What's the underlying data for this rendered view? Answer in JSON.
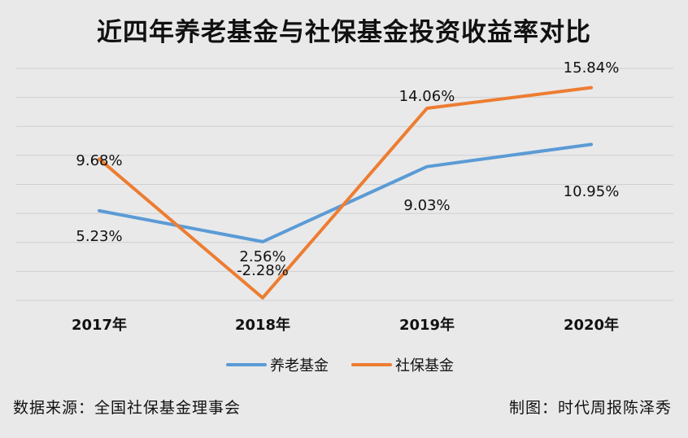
{
  "title": "近四年养老基金与社保基金投资收益率对比",
  "chart_data": {
    "type": "line",
    "categories": [
      "2017年",
      "2018年",
      "2019年",
      "2020年"
    ],
    "series": [
      {
        "name": "养老基金",
        "values": [
          5.23,
          2.56,
          9.03,
          10.95
        ],
        "labels": [
          "5.23%",
          "2.56%",
          "9.03%",
          "10.95%"
        ],
        "color": "#5b9bd5"
      },
      {
        "name": "社保基金",
        "values": [
          9.68,
          -2.28,
          14.06,
          15.84
        ],
        "labels": [
          "9.68%",
          "-2.28%",
          "14.06%",
          "15.84%"
        ],
        "color": "#ed7d31"
      }
    ],
    "ylim": [
      -2.5,
      17.5
    ],
    "grid": true,
    "legend": "bottom-center"
  },
  "footer": {
    "source": "数据来源：全国社保基金理事会",
    "credit": "制图：时代周报陈泽秀"
  }
}
